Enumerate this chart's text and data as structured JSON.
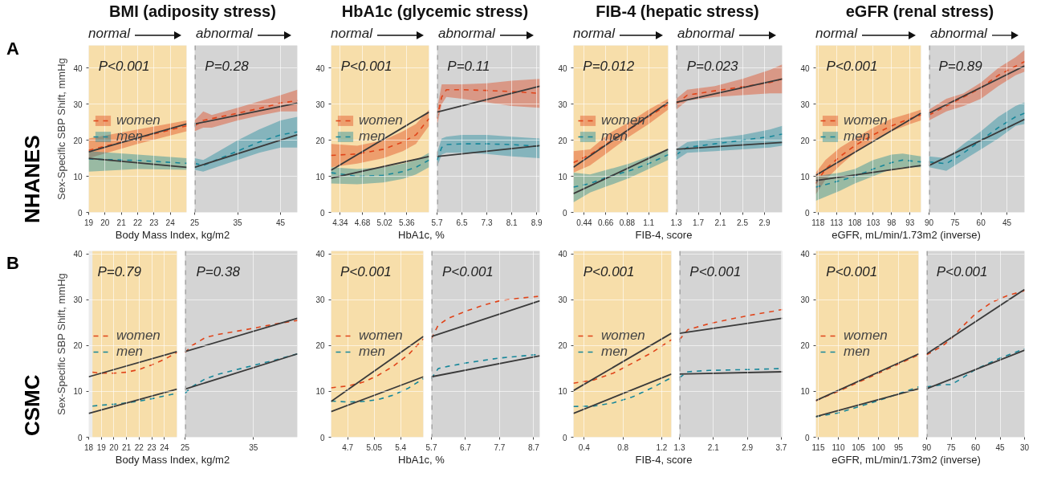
{
  "chart_data": [
    {
      "type": "line",
      "title": "BMI (adiposity stress)",
      "xlabel": "Body Mass Index, kg/m2",
      "ylabel": "Sex-Specific SBP Shift, mmHg",
      "xlim": [
        19,
        25
      ],
      "ylim": [
        0,
        46.3
      ],
      "xticks": [
        19,
        20,
        21,
        22,
        23,
        24
      ],
      "yticks": [
        0,
        10,
        20,
        30,
        40
      ],
      "grid": true,
      "legend": "left",
      "bands": [
        {
          "axis": "x",
          "from": 19,
          "to": 25,
          "color": "#f7deaa"
        }
      ],
      "annotations": [
        "P<0.001",
        "normal",
        "A",
        "NHANES"
      ],
      "series": [
        {
          "name": "women",
          "color": "#e0441a",
          "line_style": "dashed",
          "x": [
            19,
            22,
            25
          ],
          "values": [
            17.2,
            20.6,
            24
          ],
          "lower": [
            15,
            19,
            22.5
          ],
          "upper": [
            20.5,
            23,
            25.5
          ]
        },
        {
          "name": "men",
          "color": "#17879a",
          "line_style": "dashed",
          "x": [
            19,
            22,
            25
          ],
          "values": [
            14.8,
            14.4,
            13.6
          ],
          "lower": [
            11.3,
            12,
            11.8
          ],
          "upper": [
            17,
            16,
            15
          ]
        },
        {
          "color": "#3a3a3a",
          "line_style": "solid",
          "x": [
            19,
            25
          ],
          "values": [
            16.8,
            24.5
          ]
        },
        {
          "color": "#3a3a3a",
          "line_style": "solid",
          "x": [
            19,
            25
          ],
          "values": [
            15,
            12.5
          ]
        }
      ]
    },
    {
      "type": "line",
      "xlim": [
        25,
        48.9
      ],
      "ylim": [
        0,
        46.3
      ],
      "xticks": [
        25,
        35,
        45
      ],
      "yticks": [
        0,
        10,
        20,
        30,
        40
      ],
      "grid": true,
      "tick_labels": "x",
      "bands": [
        {
          "axis": "x",
          "from": 25,
          "to": 48.9,
          "color": "#d4d4d4"
        }
      ],
      "ref_lines": [
        {
          "axis": "x",
          "value": 25,
          "color": "#a6a6a6",
          "line_style": "dashed"
        }
      ],
      "annotations": [
        "P=0.28",
        "abnormal"
      ],
      "series": [
        {
          "color": "#e0441a",
          "line_style": "dashed",
          "x": [
            25,
            27,
            29,
            35,
            40,
            45,
            48.9
          ],
          "values": [
            24,
            25.5,
            26,
            27.5,
            28.8,
            30.3,
            31
          ],
          "lower": [
            22.5,
            23.5,
            23.5,
            25.5,
            26.8,
            28,
            28
          ],
          "upper": [
            25.5,
            28,
            27,
            29,
            30.8,
            32.5,
            34
          ]
        },
        {
          "color": "#17879a",
          "line_style": "dashed",
          "x": [
            25,
            27,
            30,
            35,
            40,
            45,
            48.9
          ],
          "values": [
            13.6,
            13,
            14.5,
            17,
            19.5,
            21.5,
            22.3
          ],
          "lower": [
            11.8,
            11.3,
            12.5,
            14.5,
            16.5,
            18,
            18
          ],
          "upper": [
            15,
            14.5,
            16.5,
            20,
            23,
            25.5,
            26.5
          ]
        },
        {
          "color": "#3a3a3a",
          "line_style": "solid",
          "x": [
            25,
            48.9
          ],
          "values": [
            24.5,
            30.3
          ]
        },
        {
          "color": "#3a3a3a",
          "line_style": "solid",
          "x": [
            25,
            48.9
          ],
          "values": [
            12.5,
            21.5
          ]
        }
      ]
    },
    {
      "type": "line",
      "title": "HbA1c (glycemic stress)",
      "xlabel": "HbA1c, %",
      "xlim": [
        4.2,
        5.7
      ],
      "ylim": [
        0,
        46.3
      ],
      "xticks": [
        4.34,
        4.68,
        5.02,
        5.36
      ],
      "yticks": [
        0,
        10,
        20,
        30,
        40
      ],
      "grid": true,
      "legend": "left",
      "bands": [
        {
          "axis": "x",
          "from": 4.2,
          "to": 5.7,
          "color": "#f7deaa"
        }
      ],
      "annotations": [
        "P<0.001",
        "normal"
      ],
      "series": [
        {
          "name": "women",
          "color": "#e0441a",
          "line_style": "dashed",
          "x": [
            4.2,
            4.6,
            5.0,
            5.3,
            5.5,
            5.7
          ],
          "values": [
            15.8,
            16.2,
            17.5,
            19.5,
            21.5,
            26
          ],
          "lower": [
            12.5,
            13.5,
            15,
            17,
            19,
            24
          ],
          "upper": [
            19,
            18.5,
            20,
            22.5,
            24.5,
            28.5
          ]
        },
        {
          "name": "men",
          "color": "#17879a",
          "line_style": "dashed",
          "x": [
            4.2,
            4.6,
            5.0,
            5.3,
            5.5,
            5.7
          ],
          "values": [
            11,
            10,
            10.3,
            11.3,
            12.5,
            14.5
          ],
          "lower": [
            8,
            7.8,
            8.3,
            9.3,
            10.5,
            12.5
          ],
          "upper": [
            12.5,
            12,
            12.5,
            13.5,
            14.5,
            16.5
          ]
        },
        {
          "color": "#3a3a3a",
          "line_style": "solid",
          "x": [
            4.2,
            5.7
          ],
          "values": [
            11.7,
            27.8
          ]
        },
        {
          "color": "#3a3a3a",
          "line_style": "solid",
          "x": [
            4.2,
            5.7
          ],
          "values": [
            9.5,
            15.5
          ]
        }
      ]
    },
    {
      "type": "line",
      "xlim": [
        5.7,
        9.0
      ],
      "ylim": [
        0,
        46.3
      ],
      "xticks": [
        5.7,
        6.5,
        7.3,
        8.1,
        8.9
      ],
      "yticks": [
        0,
        10,
        20,
        30,
        40
      ],
      "grid": true,
      "tick_labels": "x",
      "bands": [
        {
          "axis": "x",
          "from": 5.7,
          "to": 9.0,
          "color": "#d4d4d4"
        }
      ],
      "ref_lines": [
        {
          "axis": "x",
          "value": 5.7,
          "color": "#a6a6a6",
          "line_style": "dashed"
        }
      ],
      "annotations": [
        "P=0.11",
        "abnormal"
      ],
      "series": [
        {
          "color": "#e0441a",
          "line_style": "dashed",
          "x": [
            5.7,
            5.85,
            6.0,
            6.5,
            7.3,
            8.1,
            9.0
          ],
          "values": [
            26,
            32,
            34,
            34,
            33.8,
            33.5,
            33
          ],
          "lower": [
            24,
            30,
            32,
            31.5,
            30.5,
            29.5,
            29
          ],
          "upper": [
            28.5,
            35.5,
            35.5,
            35.5,
            35.8,
            36.5,
            37
          ]
        },
        {
          "color": "#17879a",
          "line_style": "dashed",
          "x": [
            5.7,
            5.85,
            6.0,
            6.5,
            7.3,
            8.1,
            9.0
          ],
          "values": [
            14.5,
            18,
            18.8,
            19,
            19,
            18.8,
            18.3
          ],
          "lower": [
            12.5,
            16,
            16.5,
            16.5,
            16.2,
            15.5,
            15
          ],
          "upper": [
            16.5,
            20.5,
            21,
            21.5,
            21.5,
            21,
            20.5
          ]
        },
        {
          "color": "#3a3a3a",
          "line_style": "solid",
          "x": [
            5.7,
            9.0
          ],
          "values": [
            27.8,
            35
          ]
        },
        {
          "color": "#3a3a3a",
          "line_style": "solid",
          "x": [
            5.7,
            9.0
          ],
          "values": [
            15.5,
            18.5
          ]
        }
      ]
    },
    {
      "type": "line",
      "title": "FIB-4 (hepatic stress)",
      "xlabel": "FIB-4, score",
      "xlim": [
        0.33,
        1.3
      ],
      "ylim": [
        0,
        46.3
      ],
      "xticks": [
        0.44,
        0.66,
        0.88,
        1.1
      ],
      "yticks": [
        0,
        10,
        20,
        30,
        40
      ],
      "grid": true,
      "legend": "left",
      "bands": [
        {
          "axis": "x",
          "from": 0.33,
          "to": 1.3,
          "color": "#f7deaa"
        }
      ],
      "annotations": [
        "P=0.012",
        "normal"
      ],
      "series": [
        {
          "name": "women",
          "color": "#e0441a",
          "line_style": "dashed",
          "x": [
            0.33,
            0.5,
            0.7,
            0.9,
            1.1,
            1.3
          ],
          "values": [
            13.8,
            16,
            19.5,
            23,
            26.5,
            30
          ],
          "lower": [
            11,
            13,
            17,
            21,
            24.5,
            28.5
          ],
          "upper": [
            17,
            17.5,
            22,
            25,
            28.5,
            31.5
          ]
        },
        {
          "name": "men",
          "color": "#17879a",
          "line_style": "dashed",
          "x": [
            0.33,
            0.5,
            0.7,
            0.9,
            1.1,
            1.3
          ],
          "values": [
            7,
            8,
            10,
            11.5,
            13.5,
            16
          ],
          "lower": [
            2.8,
            5.5,
            7.5,
            9.5,
            12,
            14.5
          ],
          "upper": [
            11,
            10.5,
            12,
            13.5,
            15.5,
            17.5
          ]
        },
        {
          "color": "#3a3a3a",
          "line_style": "solid",
          "x": [
            0.33,
            1.3
          ],
          "values": [
            12.5,
            30.5
          ]
        },
        {
          "color": "#3a3a3a",
          "line_style": "solid",
          "x": [
            0.33,
            1.3
          ],
          "values": [
            5.2,
            17.5
          ]
        }
      ]
    },
    {
      "type": "line",
      "xlim": [
        1.3,
        3.22
      ],
      "ylim": [
        0,
        46.3
      ],
      "xticks": [
        1.3,
        1.7,
        2.1,
        2.5,
        2.9
      ],
      "yticks": [
        0,
        10,
        20,
        30,
        40
      ],
      "grid": true,
      "tick_labels": "x",
      "bands": [
        {
          "axis": "x",
          "from": 1.3,
          "to": 3.22,
          "color": "#d4d4d4"
        }
      ],
      "ref_lines": [
        {
          "axis": "x",
          "value": 1.3,
          "color": "#a6a6a6",
          "line_style": "dashed"
        }
      ],
      "annotations": [
        "P=0.023",
        "abnormal"
      ],
      "series": [
        {
          "color": "#e0441a",
          "line_style": "dashed",
          "x": [
            1.3,
            1.5,
            2.0,
            2.5,
            3.0,
            3.22
          ],
          "values": [
            30,
            32.5,
            33.7,
            34.8,
            36,
            37
          ],
          "lower": [
            28.5,
            31,
            32,
            32.5,
            33,
            33
          ],
          "upper": [
            31.5,
            34,
            35,
            37,
            39.5,
            41
          ]
        },
        {
          "color": "#17879a",
          "line_style": "dashed",
          "x": [
            1.3,
            1.5,
            2.0,
            2.5,
            3.0,
            3.22
          ],
          "values": [
            16,
            18,
            19,
            20,
            21,
            21.7
          ],
          "lower": [
            14.5,
            16.5,
            17,
            17.5,
            18,
            18.5
          ],
          "upper": [
            17.5,
            19.5,
            20.5,
            21.5,
            23,
            24
          ]
        },
        {
          "color": "#3a3a3a",
          "line_style": "solid",
          "x": [
            1.3,
            3.22
          ],
          "values": [
            30.5,
            37
          ]
        },
        {
          "color": "#3a3a3a",
          "line_style": "solid",
          "x": [
            1.3,
            3.22
          ],
          "values": [
            17.5,
            19.4
          ]
        }
      ]
    },
    {
      "type": "line",
      "title": "eGFR (renal stress)",
      "xlabel": "eGFR, mL/min/1.73m2 (inverse)",
      "xlim": [
        118.6,
        90
      ],
      "ylim": [
        0,
        46.3
      ],
      "xticks": [
        118,
        113,
        108,
        103,
        98,
        93
      ],
      "yticks": [
        0,
        10,
        20,
        30,
        40
      ],
      "grid": true,
      "legend": "left",
      "bands": [
        {
          "axis": "x",
          "from": 118.6,
          "to": 90,
          "color": "#f7deaa"
        }
      ],
      "annotations": [
        "P<0.001",
        "normal"
      ],
      "series": [
        {
          "name": "women",
          "color": "#e0441a",
          "line_style": "dashed",
          "x": [
            118.6,
            116,
            112,
            108,
            103,
            98,
            93,
            90
          ],
          "values": [
            8,
            12,
            15.5,
            18.5,
            21.5,
            24,
            26,
            27
          ],
          "lower": [
            5,
            9,
            13,
            16.5,
            20,
            22.5,
            24.5,
            25.5
          ],
          "upper": [
            11,
            14.5,
            18,
            20.5,
            23.5,
            26,
            27.5,
            28.5
          ]
        },
        {
          "name": "men",
          "color": "#17879a",
          "line_style": "dashed",
          "x": [
            118.6,
            112,
            108,
            103,
            98,
            95,
            90
          ],
          "values": [
            7,
            8.8,
            10,
            12,
            13.8,
            14.5,
            14
          ],
          "lower": [
            3.2,
            6,
            8,
            10,
            12,
            12.5,
            12.5
          ],
          "upper": [
            10,
            11,
            12,
            14.5,
            16,
            16.3,
            15.5
          ]
        },
        {
          "color": "#3a3a3a",
          "line_style": "solid",
          "x": [
            118.6,
            90
          ],
          "values": [
            10.3,
            27.5
          ]
        },
        {
          "color": "#3a3a3a",
          "line_style": "solid",
          "x": [
            118.6,
            90
          ],
          "values": [
            8.8,
            13
          ]
        }
      ]
    },
    {
      "type": "line",
      "xlim": [
        90,
        34.8
      ],
      "ylim": [
        0,
        46.3
      ],
      "xticks": [
        90,
        75,
        60,
        45
      ],
      "yticks": [
        0,
        10,
        20,
        30,
        40
      ],
      "grid": true,
      "tick_labels": "x",
      "bands": [
        {
          "axis": "x",
          "from": 90,
          "to": 34.8,
          "color": "#d4d4d4"
        }
      ],
      "ref_lines": [
        {
          "axis": "x",
          "value": 90,
          "color": "#a6a6a6",
          "line_style": "dashed"
        }
      ],
      "annotations": [
        "P=0.89",
        "abnormal"
      ],
      "series": [
        {
          "color": "#e0441a",
          "line_style": "dashed",
          "x": [
            90,
            80,
            70,
            60,
            50,
            40,
            34.8
          ],
          "values": [
            27,
            29.5,
            32,
            34.5,
            38,
            40.5,
            41.8
          ],
          "lower": [
            25.5,
            28,
            29.5,
            31.5,
            35,
            38,
            39
          ],
          "upper": [
            28.5,
            31.5,
            33,
            36,
            40,
            43,
            45
          ]
        },
        {
          "color": "#17879a",
          "line_style": "dashed",
          "x": [
            90,
            80,
            70,
            60,
            50,
            40,
            34.8
          ],
          "values": [
            14,
            13.5,
            16.5,
            20,
            23.5,
            26.5,
            27.5
          ],
          "lower": [
            12.5,
            11.5,
            14.5,
            17.5,
            20.5,
            24,
            24.5
          ],
          "upper": [
            15.5,
            15,
            19,
            22.5,
            26.5,
            29.5,
            30.5
          ]
        },
        {
          "color": "#3a3a3a",
          "line_style": "solid",
          "x": [
            90,
            34.8
          ],
          "values": [
            27.5,
            40.6
          ]
        },
        {
          "color": "#3a3a3a",
          "line_style": "solid",
          "x": [
            90,
            34.8
          ],
          "values": [
            13,
            25.8
          ]
        }
      ]
    },
    {
      "type": "line",
      "xlabel": "Body Mass Index, kg/m2",
      "ylabel": "Sex-Specific SBP Shift, mmHg",
      "xlim": [
        18,
        25
      ],
      "ylim": [
        0,
        40.7
      ],
      "xticks": [
        18,
        19,
        20,
        21,
        22,
        23,
        24
      ],
      "yticks": [
        0,
        10,
        20,
        30,
        40
      ],
      "grid": true,
      "legend": "left",
      "bands": [
        {
          "axis": "x",
          "from": 18.3,
          "to": 25,
          "color": "#f7deaa"
        }
      ],
      "annotations": [
        "P=0.79",
        "B",
        "CSMC"
      ],
      "series": [
        {
          "name": "women",
          "color": "#e0441a",
          "line_style": "dashed",
          "x": [
            18.3,
            19,
            20,
            21,
            22,
            23,
            24,
            25
          ],
          "values": [
            14.2,
            14,
            14,
            14.2,
            14.8,
            15.8,
            17,
            18.5
          ]
        },
        {
          "name": "men",
          "color": "#17879a",
          "line_style": "dashed",
          "x": [
            18.3,
            19,
            20,
            21,
            22,
            23,
            24,
            25
          ],
          "values": [
            6.8,
            7,
            7.2,
            7.5,
            7.9,
            8.4,
            9,
            9.6
          ]
        },
        {
          "color": "#3a3a3a",
          "line_style": "solid",
          "x": [
            18,
            25
          ],
          "values": [
            13.2,
            18.7
          ]
        },
        {
          "color": "#3a3a3a",
          "line_style": "solid",
          "x": [
            18,
            25
          ],
          "values": [
            5.2,
            10.5
          ]
        }
      ]
    },
    {
      "type": "line",
      "xlim": [
        25,
        41.4
      ],
      "ylim": [
        0,
        40.7
      ],
      "xticks": [
        25,
        35
      ],
      "yticks": [
        0,
        10,
        20,
        30,
        40
      ],
      "grid": true,
      "tick_labels": "x",
      "bands": [
        {
          "axis": "x",
          "from": 25,
          "to": 41.4,
          "color": "#d4d4d4"
        }
      ],
      "ref_lines": [
        {
          "axis": "x",
          "value": 25,
          "color": "#a6a6a6",
          "line_style": "dashed"
        }
      ],
      "annotations": [
        "P=0.38"
      ],
      "series": [
        {
          "color": "#e0441a",
          "line_style": "dashed",
          "x": [
            25,
            26,
            28,
            30,
            35,
            38,
            41.4
          ],
          "values": [
            18.5,
            20,
            21.8,
            22.5,
            23.8,
            24.7,
            25.5
          ]
        },
        {
          "color": "#17879a",
          "line_style": "dashed",
          "x": [
            25,
            26,
            28,
            30,
            35,
            38,
            41.4
          ],
          "values": [
            9.6,
            11,
            12.8,
            13.8,
            15.7,
            16.8,
            18.2
          ]
        },
        {
          "color": "#3a3a3a",
          "line_style": "solid",
          "x": [
            25,
            41.4
          ],
          "values": [
            18.7,
            26
          ]
        },
        {
          "color": "#3a3a3a",
          "line_style": "solid",
          "x": [
            25,
            41.4
          ],
          "values": [
            10.5,
            18.2
          ]
        }
      ]
    },
    {
      "type": "line",
      "xlabel": "HbA1c, %",
      "xlim": [
        4.48,
        5.7
      ],
      "ylim": [
        0,
        40.7
      ],
      "xticks": [
        4.7,
        5.05,
        5.4
      ],
      "yticks": [
        0,
        10,
        20,
        30,
        40
      ],
      "grid": true,
      "legend": "left",
      "bands": [
        {
          "axis": "x",
          "from": 4.48,
          "to": 5.7,
          "color": "#f7deaa"
        }
      ],
      "annotations": [
        "P<0.001"
      ],
      "series": [
        {
          "name": "women",
          "color": "#e0441a",
          "line_style": "dashed",
          "x": [
            4.48,
            4.7,
            4.9,
            5.1,
            5.3,
            5.5,
            5.7
          ],
          "values": [
            10.8,
            11.2,
            12,
            13.5,
            15.5,
            18,
            21.5
          ]
        },
        {
          "name": "men",
          "color": "#17879a",
          "line_style": "dashed",
          "x": [
            4.48,
            4.7,
            4.9,
            5.1,
            5.3,
            5.5,
            5.7
          ],
          "values": [
            7.9,
            7.7,
            7.8,
            8.2,
            9.2,
            10.7,
            12.8
          ]
        },
        {
          "color": "#3a3a3a",
          "line_style": "solid",
          "x": [
            4.48,
            5.7
          ],
          "values": [
            7.8,
            22
          ]
        },
        {
          "color": "#3a3a3a",
          "line_style": "solid",
          "x": [
            4.48,
            5.7
          ],
          "values": [
            5.6,
            13.2
          ]
        }
      ]
    },
    {
      "type": "line",
      "xlim": [
        5.7,
        8.88
      ],
      "ylim": [
        0,
        40.7
      ],
      "xticks": [
        5.7,
        6.7,
        7.7,
        8.7
      ],
      "yticks": [
        0,
        10,
        20,
        30,
        40
      ],
      "grid": true,
      "tick_labels": "x",
      "bands": [
        {
          "axis": "x",
          "from": 5.7,
          "to": 8.88,
          "color": "#d4d4d4"
        }
      ],
      "ref_lines": [
        {
          "axis": "x",
          "value": 5.7,
          "color": "#a6a6a6",
          "line_style": "dashed"
        }
      ],
      "annotations": [
        "P<0.001"
      ],
      "series": [
        {
          "color": "#e0441a",
          "line_style": "dashed",
          "x": [
            5.7,
            5.9,
            6.2,
            6.7,
            7.2,
            7.7,
            8.2,
            8.88
          ],
          "values": [
            21.5,
            24.5,
            26,
            27.5,
            28.8,
            29.8,
            30.3,
            30.8
          ]
        },
        {
          "color": "#17879a",
          "line_style": "dashed",
          "x": [
            5.7,
            5.9,
            6.2,
            6.7,
            7.7,
            8.88
          ],
          "values": [
            12.8,
            15,
            15.5,
            16.2,
            17.3,
            18.1
          ]
        },
        {
          "color": "#3a3a3a",
          "line_style": "solid",
          "x": [
            5.7,
            8.88
          ],
          "values": [
            22,
            29.8
          ]
        },
        {
          "color": "#3a3a3a",
          "line_style": "solid",
          "x": [
            5.7,
            8.88
          ],
          "values": [
            13.2,
            17.8
          ]
        }
      ]
    },
    {
      "type": "line",
      "xlabel": "FIB-4, score",
      "xlim": [
        0.29,
        1.3
      ],
      "ylim": [
        0,
        40.7
      ],
      "xticks": [
        0.4,
        0.8,
        1.2
      ],
      "yticks": [
        0,
        10,
        20,
        30,
        40
      ],
      "grid": true,
      "legend": "left",
      "bands": [
        {
          "axis": "x",
          "from": 0.29,
          "to": 1.3,
          "color": "#f7deaa"
        }
      ],
      "annotations": [
        "P<0.001"
      ],
      "series": [
        {
          "name": "women",
          "color": "#e0441a",
          "line_style": "dashed",
          "x": [
            0.29,
            0.5,
            0.7,
            0.9,
            1.1,
            1.3
          ],
          "values": [
            11.8,
            12.5,
            14,
            16.2,
            18.5,
            21.3
          ]
        },
        {
          "name": "men",
          "color": "#17879a",
          "line_style": "dashed",
          "x": [
            0.29,
            0.5,
            0.7,
            0.9,
            1.1,
            1.3
          ],
          "values": [
            6.7,
            6.8,
            7.5,
            8.8,
            10.8,
            13
          ]
        },
        {
          "color": "#3a3a3a",
          "line_style": "solid",
          "x": [
            0.29,
            1.3
          ],
          "values": [
            10.2,
            22.7
          ]
        },
        {
          "color": "#3a3a3a",
          "line_style": "solid",
          "x": [
            0.29,
            1.3
          ],
          "values": [
            5.2,
            13.8
          ]
        }
      ]
    },
    {
      "type": "line",
      "xlim": [
        1.3,
        3.72
      ],
      "ylim": [
        0,
        40.7
      ],
      "xticks": [
        1.3,
        2.1,
        2.9,
        3.7
      ],
      "yticks": [
        0,
        10,
        20,
        30,
        40
      ],
      "grid": true,
      "tick_labels": "x",
      "bands": [
        {
          "axis": "x",
          "from": 1.3,
          "to": 3.72,
          "color": "#d4d4d4"
        }
      ],
      "ref_lines": [
        {
          "axis": "x",
          "value": 1.3,
          "color": "#a6a6a6",
          "line_style": "dashed"
        }
      ],
      "annotations": [
        "P<0.001"
      ],
      "series": [
        {
          "color": "#e0441a",
          "line_style": "dashed",
          "x": [
            1.3,
            1.5,
            2.0,
            2.5,
            3.0,
            3.5,
            3.72
          ],
          "values": [
            21.3,
            23.5,
            24.8,
            25.8,
            26.7,
            27.5,
            27.9
          ]
        },
        {
          "color": "#17879a",
          "line_style": "dashed",
          "x": [
            1.3,
            1.5,
            2.0,
            2.5,
            3.0,
            3.72
          ],
          "values": [
            13,
            14.3,
            14.6,
            14.7,
            14.8,
            15
          ]
        },
        {
          "color": "#3a3a3a",
          "line_style": "solid",
          "x": [
            1.3,
            3.72
          ],
          "values": [
            22.7,
            26
          ]
        },
        {
          "color": "#3a3a3a",
          "line_style": "solid",
          "x": [
            1.3,
            3.72
          ],
          "values": [
            13.8,
            14.3
          ]
        }
      ]
    },
    {
      "type": "line",
      "xlabel": "eGFR, mL/min/1.73m2 (inverse)",
      "xlim": [
        115.6,
        90
      ],
      "ylim": [
        0,
        40.7
      ],
      "xticks": [
        115,
        110,
        105,
        100,
        95
      ],
      "yticks": [
        0,
        10,
        20,
        30,
        40
      ],
      "grid": true,
      "legend": "left",
      "bands": [
        {
          "axis": "x",
          "from": 115.6,
          "to": 90,
          "color": "#f7deaa"
        }
      ],
      "annotations": [
        "P<0.001"
      ],
      "series": [
        {
          "name": "women",
          "color": "#e0441a",
          "line_style": "dashed",
          "x": [
            115.6,
            110,
            100,
            90
          ],
          "values": [
            8,
            10,
            14,
            18
          ]
        },
        {
          "name": "men",
          "color": "#17879a",
          "line_style": "dashed",
          "x": [
            115.6,
            110,
            100,
            90
          ],
          "values": [
            4.5,
            5.3,
            8,
            11
          ]
        },
        {
          "color": "#3a3a3a",
          "line_style": "solid",
          "x": [
            115.6,
            90
          ],
          "values": [
            8,
            18.2
          ]
        },
        {
          "color": "#3a3a3a",
          "line_style": "solid",
          "x": [
            115.6,
            90
          ],
          "values": [
            4.5,
            10.6
          ]
        }
      ]
    },
    {
      "type": "line",
      "xlim": [
        90,
        30
      ],
      "ylim": [
        0,
        40.7
      ],
      "xticks": [
        90,
        75,
        60,
        45,
        30
      ],
      "yticks": [
        0,
        10,
        20,
        30,
        40
      ],
      "grid": true,
      "tick_labels": "x",
      "bands": [
        {
          "axis": "x",
          "from": 90,
          "to": 30,
          "color": "#d4d4d4"
        }
      ],
      "ref_lines": [
        {
          "axis": "x",
          "value": 90,
          "color": "#a6a6a6",
          "line_style": "dashed"
        }
      ],
      "annotations": [
        "P<0.001"
      ],
      "series": [
        {
          "color": "#e0441a",
          "line_style": "dashed",
          "x": [
            90,
            80,
            75,
            70,
            60,
            50,
            40,
            30
          ],
          "values": [
            18,
            20,
            21.5,
            23.5,
            27,
            29.5,
            31,
            32
          ]
        },
        {
          "color": "#17879a",
          "line_style": "dashed",
          "x": [
            90,
            80,
            75,
            70,
            60,
            45,
            30
          ],
          "values": [
            11,
            11.5,
            11.5,
            12.5,
            14.8,
            17.3,
            19.3
          ]
        },
        {
          "color": "#3a3a3a",
          "line_style": "solid",
          "x": [
            90,
            30
          ],
          "values": [
            18.2,
            32.3
          ]
        },
        {
          "color": "#3a3a3a",
          "line_style": "solid",
          "x": [
            90,
            30
          ],
          "values": [
            10.6,
            19
          ]
        }
      ]
    }
  ]
}
